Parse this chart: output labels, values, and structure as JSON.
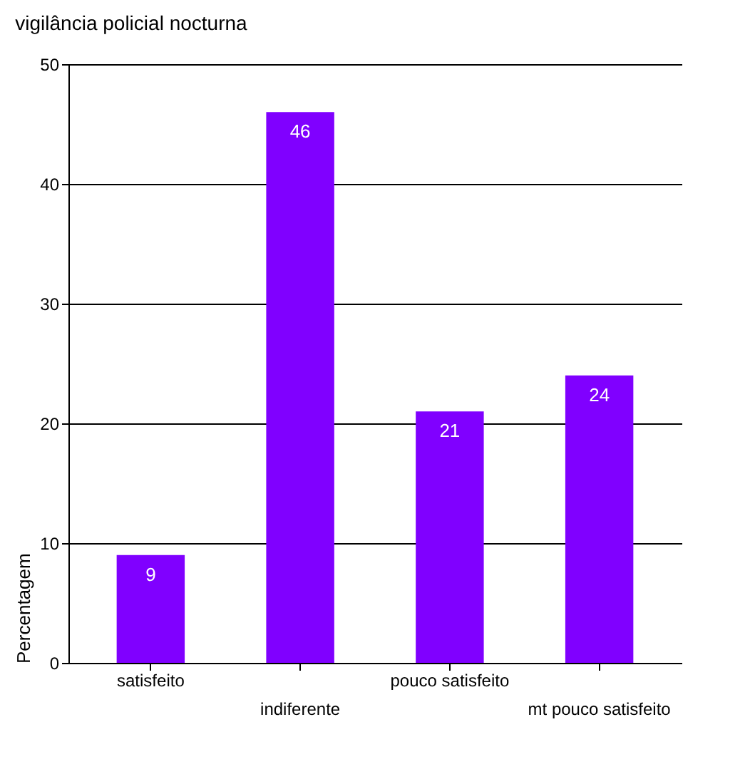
{
  "chart_data": {
    "type": "bar",
    "title": "vigilância policial nocturna",
    "ylabel": "Percentagem",
    "categories": [
      "satisfeito",
      "indiferente",
      "pouco satisfeito",
      "mt pouco satisfeito"
    ],
    "values": [
      9,
      46,
      21,
      24
    ],
    "color": "#8000ff",
    "ylim": [
      0,
      50
    ],
    "yticks": [
      0,
      10,
      20,
      30,
      40,
      50
    ],
    "grid": "y",
    "data_labels": true
  }
}
